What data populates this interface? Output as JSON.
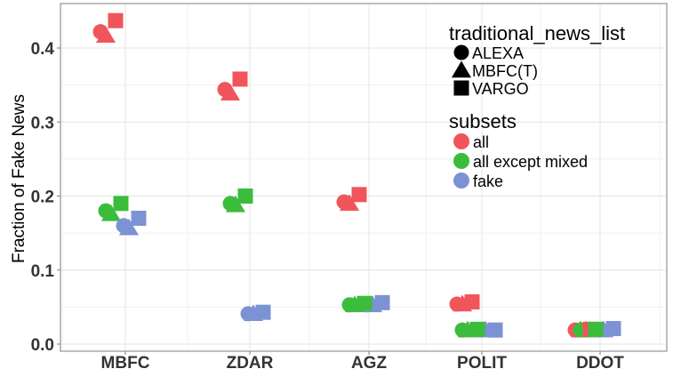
{
  "chart_data": {
    "type": "scatter",
    "title": "",
    "xlabel": "",
    "ylabel": "Fraction of Fake News",
    "categories": [
      "MBFC",
      "ZDAR",
      "AGZ",
      "POLIT",
      "DDOT"
    ],
    "y_ticks": [
      "0.0",
      "0.1",
      "0.2",
      "0.3",
      "0.4"
    ],
    "ylim": [
      -0.01,
      0.46
    ],
    "grid": true,
    "legend_placement": "top-right",
    "shape_legend": {
      "title": "traditional_news_list",
      "items": [
        {
          "label": "ALEXA",
          "shape": "circle"
        },
        {
          "label": "MBFC(T)",
          "shape": "triangle"
        },
        {
          "label": "VARGO",
          "shape": "square"
        }
      ]
    },
    "color_legend": {
      "title": "subsets",
      "items": [
        {
          "label": "all",
          "color": "#f0555b"
        },
        {
          "label": "all except mixed",
          "color": "#3bbd3b"
        },
        {
          "label": "fake",
          "color": "#7b93d4"
        }
      ]
    },
    "series": [
      {
        "subset": "all",
        "list": "ALEXA",
        "values": [
          0.422,
          0.344,
          0.192,
          0.054,
          0.019
        ]
      },
      {
        "subset": "all",
        "list": "MBFC(T)",
        "values": [
          0.417,
          0.339,
          0.19,
          0.054,
          0.019
        ]
      },
      {
        "subset": "all",
        "list": "VARGO",
        "values": [
          0.437,
          0.358,
          0.202,
          0.057,
          0.02
        ]
      },
      {
        "subset": "all except mixed",
        "list": "ALEXA",
        "values": [
          0.18,
          0.19,
          0.053,
          0.019,
          0.019
        ]
      },
      {
        "subset": "all except mixed",
        "list": "MBFC(T)",
        "values": [
          0.176,
          0.188,
          0.053,
          0.019,
          0.019
        ]
      },
      {
        "subset": "all except mixed",
        "list": "VARGO",
        "values": [
          0.19,
          0.2,
          0.055,
          0.02,
          0.02
        ]
      },
      {
        "subset": "fake",
        "list": "ALEXA",
        "values": [
          0.16,
          0.041,
          0.053,
          0.019,
          0.019
        ]
      },
      {
        "subset": "fake",
        "list": "MBFC(T)",
        "values": [
          0.157,
          0.041,
          0.053,
          0.019,
          0.019
        ]
      },
      {
        "subset": "fake",
        "list": "VARGO",
        "values": [
          0.17,
          0.043,
          0.056,
          0.019,
          0.021
        ]
      }
    ]
  }
}
